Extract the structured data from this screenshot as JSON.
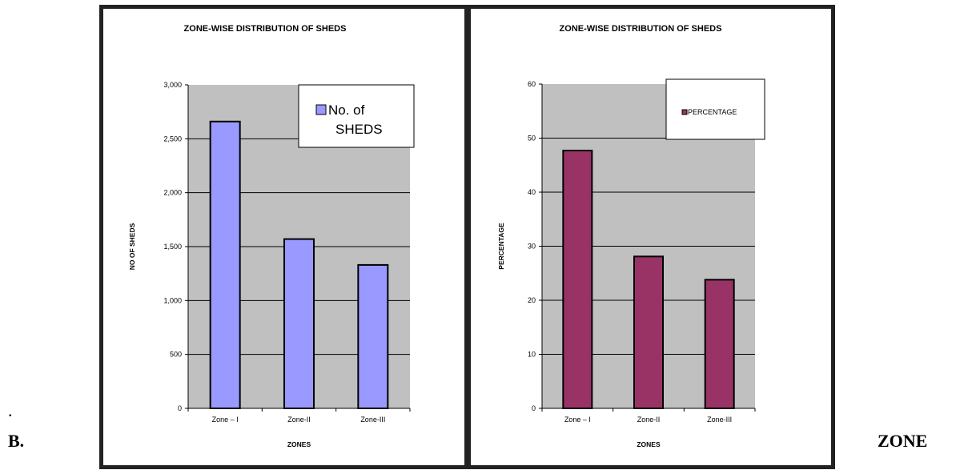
{
  "page": {
    "left_mark": ".",
    "bottom_left_text": "B.",
    "bottom_right_text": "ZONE"
  },
  "chart_data": [
    {
      "type": "bar",
      "title": "ZONE-WISE  DISTRIBUTION  OF  SHEDS",
      "xlabel": "ZONES",
      "ylabel": "NO OF SHEDS",
      "categories": [
        "Zone – I",
        "Zone-II",
        "Zone-III"
      ],
      "series": [
        {
          "name": "No. of SHEDS",
          "values": [
            2660,
            1570,
            1330
          ],
          "color": "#9999ff"
        }
      ],
      "ylim": [
        0,
        3000
      ],
      "yticks": [
        0,
        500,
        1000,
        1500,
        2000,
        2500,
        3000
      ],
      "ytick_labels": [
        "0",
        "500",
        "1,000",
        "1,500",
        "2,000",
        "2,500",
        "3,000"
      ],
      "plot_bg": "#c0c0c0",
      "grid": true,
      "legend": "top-right",
      "legend_lines": [
        "No. of",
        "SHEDS"
      ]
    },
    {
      "type": "bar",
      "title": "ZONE-WISE  DISTRIBUTION  OF  SHEDS",
      "xlabel": "ZONES",
      "ylabel": "PERCENTAGE",
      "categories": [
        "Zone – I",
        "Zone-II",
        "Zone-III"
      ],
      "series": [
        {
          "name": "PERCENTAGE",
          "values": [
            47.7,
            28.1,
            23.8
          ],
          "color": "#993366"
        }
      ],
      "ylim": [
        0,
        60
      ],
      "yticks": [
        0,
        10,
        20,
        30,
        40,
        50,
        60
      ],
      "ytick_labels": [
        "0",
        "10",
        "20",
        "30",
        "40",
        "50",
        "60"
      ],
      "plot_bg": "#c0c0c0",
      "grid": true,
      "legend": "top-right",
      "legend_lines": [
        "PERCENTAGE"
      ]
    }
  ]
}
